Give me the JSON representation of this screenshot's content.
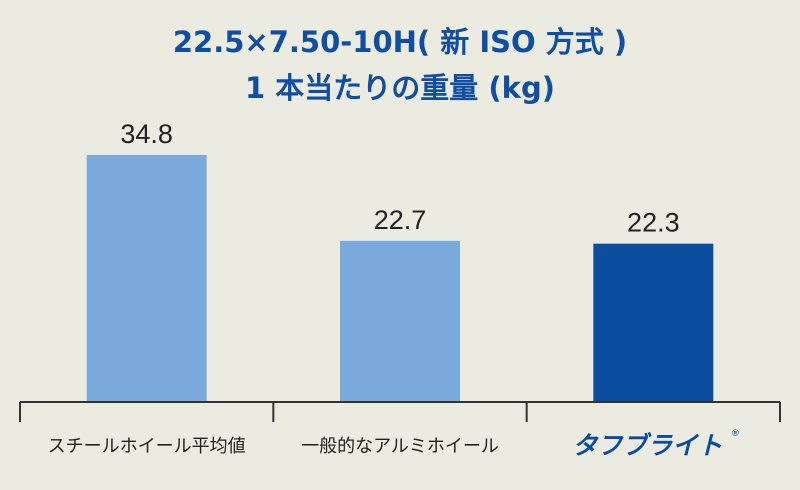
{
  "chart_data": {
    "type": "bar",
    "title": "22.5×7.50-10H( 新 ISO 方式 )",
    "subtitle": "1 本当たりの重量 (kg)",
    "categories": [
      "スチールホイール平均値",
      "一般的なアルミホイール",
      "タフブライト"
    ],
    "values": [
      34.8,
      22.7,
      22.3
    ],
    "value_labels": [
      "34.8",
      "22.7",
      "22.3"
    ],
    "brand_mark": "®",
    "ylim": [
      0,
      40
    ],
    "grid": false,
    "legend": "none",
    "colors": [
      "#7aaadc",
      "#7aaadc",
      "#0b4d9e"
    ],
    "axis_color": "#333333",
    "title_color": "#0f4ea0"
  }
}
